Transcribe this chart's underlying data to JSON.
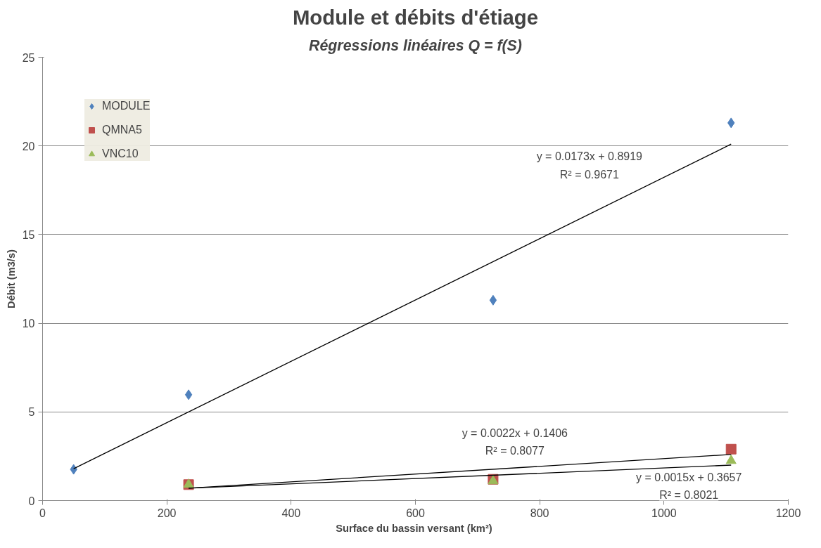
{
  "chart_data": {
    "type": "scatter",
    "title": "Module et débits d'étiage",
    "subtitle": "Régressions linéaires Q = f(S)",
    "xlabel": "Surface du bassin versant  (km²)",
    "ylabel": "Débit (m3/s)",
    "xlim": [
      0,
      1200
    ],
    "xticks": [
      0,
      200,
      400,
      600,
      800,
      1000,
      1200
    ],
    "ylim": [
      0,
      25
    ],
    "yticks": [
      0,
      5,
      10,
      15,
      20,
      25
    ],
    "grid": "y",
    "legend": "top left",
    "series": [
      {
        "name": "MODULE",
        "color": "#4f81bd",
        "marker": "diamond",
        "x": [
          50,
          235,
          725,
          1108
        ],
        "values": [
          1.76,
          5.97,
          11.3,
          21.3
        ]
      },
      {
        "name": "QMNA5",
        "color": "#c0504d",
        "marker": "square",
        "x": [
          235,
          725,
          1108
        ],
        "values": [
          0.9,
          1.2,
          2.9
        ]
      },
      {
        "name": "VNC10",
        "color": "#9bbb59",
        "marker": "triangle",
        "x": [
          235,
          725,
          1108
        ],
        "values": [
          0.9,
          1.1,
          2.25
        ]
      },
      {
        "type": "line",
        "color": "#000000",
        "marker": "none",
        "x": [
          50,
          1108
        ],
        "values": [
          1.8,
          20.1
        ]
      },
      {
        "type": "line",
        "color": "#000000",
        "marker": "none",
        "x": [
          235,
          1108
        ],
        "values": [
          0.7,
          2.6
        ]
      },
      {
        "type": "line",
        "color": "#000000",
        "marker": "none",
        "x": [
          235,
          1108
        ],
        "values": [
          0.7,
          2.0
        ]
      }
    ],
    "annotations": [
      "y = 0.0173x + 0.8919",
      "R² = 0.9671",
      "y = 0.0022x + 0.1406",
      "R² = 0.8077",
      "y = 0.0015x + 0.3657",
      "R² = 0.8021"
    ]
  }
}
